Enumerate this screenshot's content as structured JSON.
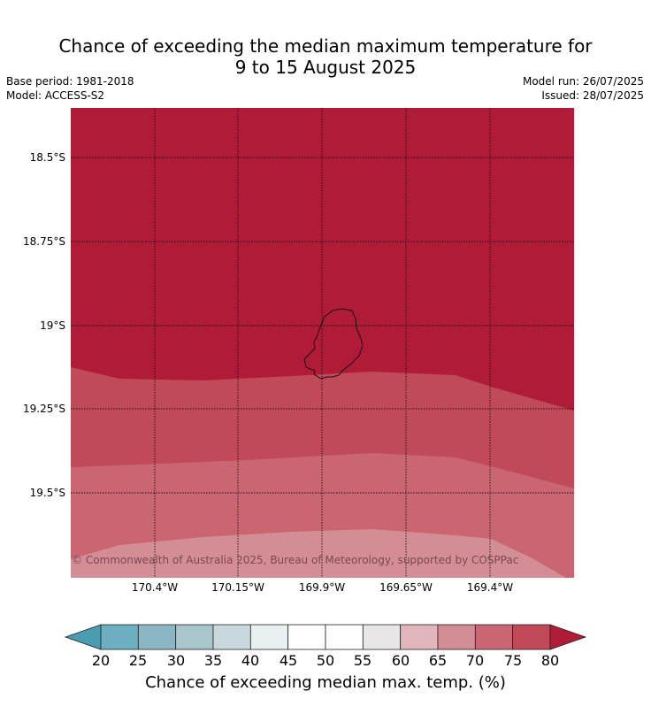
{
  "title_line1": "Chance of exceeding the median maximum temperature for",
  "title_line2": "9 to 15 August 2025",
  "base_period": "Base period: 1981-2018",
  "model": "Model: ACCESS-S2",
  "model_run": "Model run: 26/07/2025",
  "issued": "Issued: 28/07/2025",
  "copyright": "© Commonwealth of Australia 2025, Bureau of Meteorology, supported by COSPPac",
  "lat_labels": [
    "18.5°S",
    "18.75°S",
    "19°S",
    "19.25°S",
    "19.5°S"
  ],
  "lon_labels": [
    "170.4°W",
    "170.15°W",
    "169.9°W",
    "169.65°W",
    "169.4°W"
  ],
  "colorbar": {
    "title": "Chance of exceeding median max. temp. (%)",
    "ticks": [
      "20",
      "25",
      "30",
      "35",
      "40",
      "45",
      "50",
      "55",
      "60",
      "65",
      "70",
      "75",
      "80"
    ],
    "colors": {
      "below_20": "#4a9db0",
      "20-25": "#6cafc0",
      "25-30": "#8bb7c4",
      "30-35": "#a9c6cc",
      "35-40": "#c8d8dc",
      "40-45": "#e8f0f1",
      "45-50": "#ffffff",
      "50-55": "#ffffff",
      "55-60": "#e8e6e7",
      "60-65": "#e0b6bb",
      "65-70": "#d48c95",
      "70-75": "#c96672",
      "75-80": "#c04a58",
      "above_80": "#b01c38"
    }
  },
  "map_fills": {
    "band_above_80": "#b01c38",
    "band_75_80": "#c04a58",
    "band_70_75": "#c96672",
    "band_65_70": "#d48c95"
  }
}
